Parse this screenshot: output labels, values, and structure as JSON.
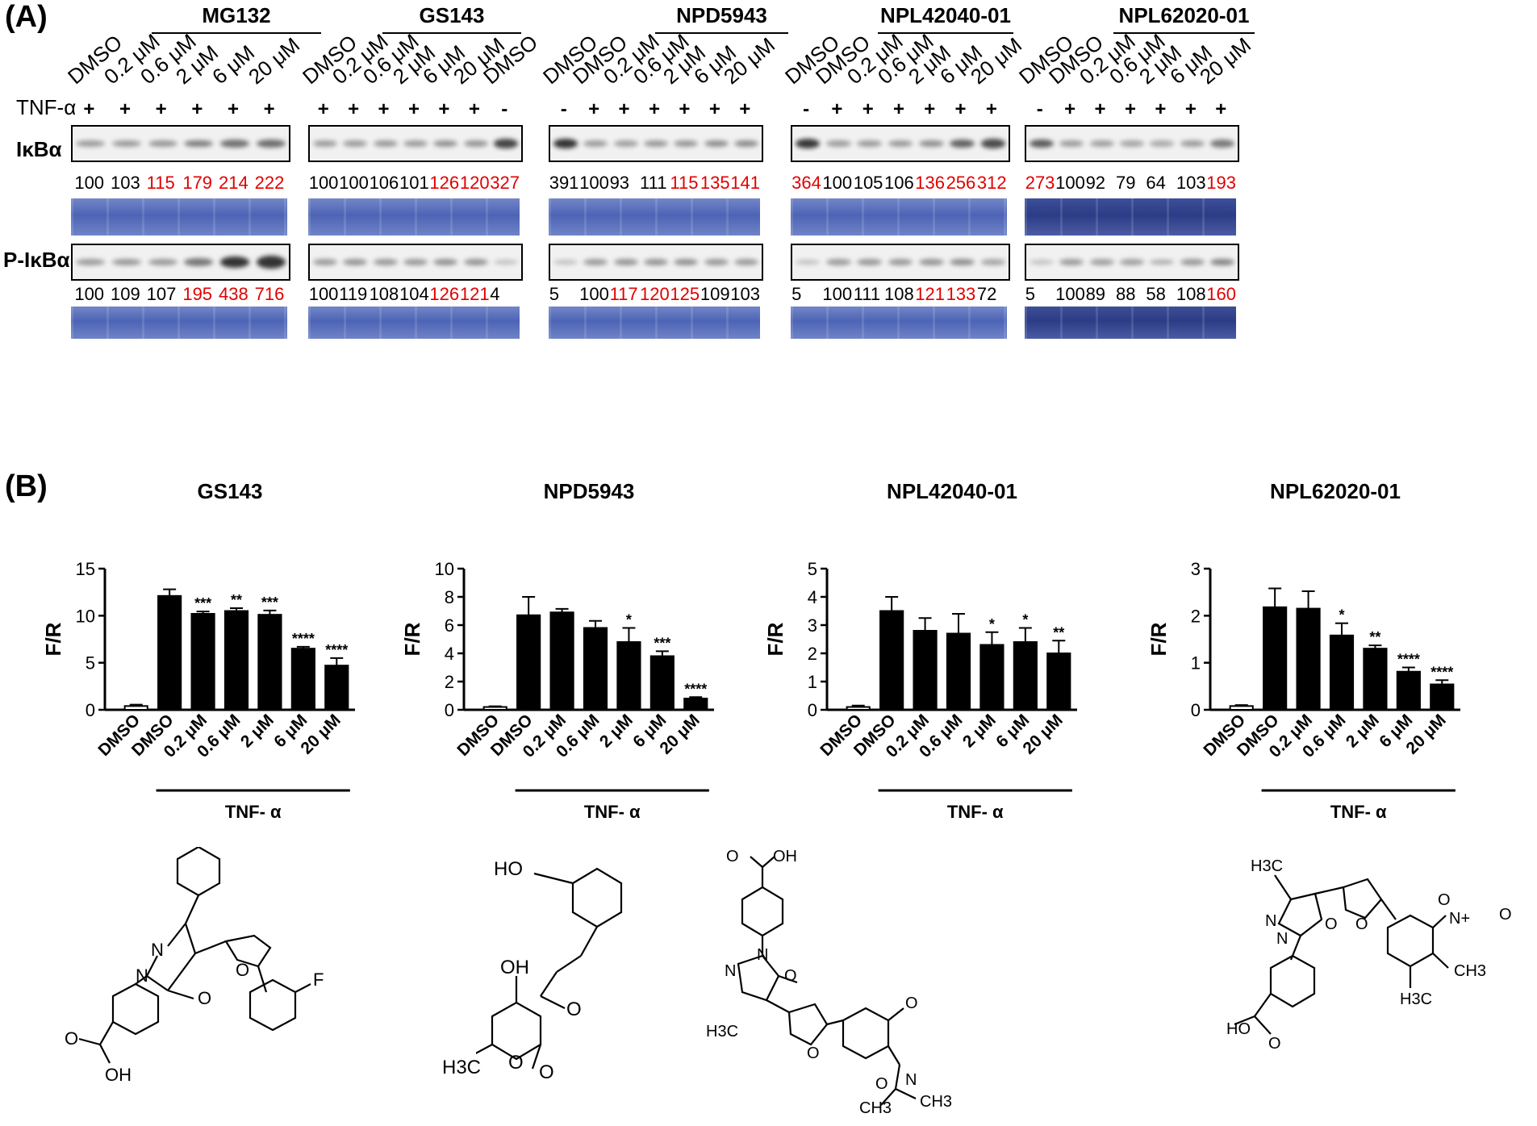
{
  "panel_a": {
    "label": "(A)",
    "tnf_label": "TNF-α",
    "row_labels": [
      "IκBα",
      "P-IκBα"
    ],
    "blots": [
      {
        "compound": "MG132",
        "lanes": [
          "DMSO",
          "0.2 μM",
          "0.6 μM",
          "2 μM",
          "6 μM",
          "20 μM"
        ],
        "tnf": [
          "+",
          "+",
          "+",
          "+",
          "+",
          "+"
        ],
        "ikba": [
          {
            "v": "100",
            "red": false
          },
          {
            "v": "103",
            "red": false
          },
          {
            "v": "115",
            "red": true
          },
          {
            "v": "179",
            "red": true
          },
          {
            "v": "214",
            "red": true
          },
          {
            "v": "222",
            "red": true
          }
        ],
        "pikba": [
          {
            "v": "100",
            "red": false
          },
          {
            "v": "109",
            "red": false
          },
          {
            "v": "107",
            "red": false
          },
          {
            "v": "195",
            "red": true
          },
          {
            "v": "438",
            "red": true
          },
          {
            "v": "716",
            "red": true
          }
        ]
      },
      {
        "compound": "GS143",
        "lanes": [
          "DMSO",
          "0.2 μM",
          "0.6 μM",
          "2 μM",
          "6 μM",
          "20 μM",
          "DMSO"
        ],
        "tnf": [
          "+",
          "+",
          "+",
          "+",
          "+",
          "+",
          "-"
        ],
        "ikba": [
          {
            "v": "100",
            "red": false
          },
          {
            "v": "100",
            "red": false
          },
          {
            "v": "106",
            "red": false
          },
          {
            "v": "101",
            "red": false
          },
          {
            "v": "126",
            "red": true
          },
          {
            "v": "120",
            "red": true
          },
          {
            "v": "327",
            "red": true
          }
        ],
        "pikba": [
          {
            "v": "100",
            "red": false
          },
          {
            "v": "119",
            "red": false
          },
          {
            "v": "108",
            "red": false
          },
          {
            "v": "104",
            "red": false
          },
          {
            "v": "126",
            "red": true
          },
          {
            "v": "121",
            "red": true
          },
          {
            "v": "4",
            "red": false
          }
        ]
      },
      {
        "compound": "NPD5943",
        "lanes": [
          "DMSO",
          "DMSO",
          "0.2 μM",
          "0.6 μM",
          "2 μM",
          "6 μM",
          "20 μM"
        ],
        "tnf": [
          "-",
          "+",
          "+",
          "+",
          "+",
          "+",
          "+"
        ],
        "ikba": [
          {
            "v": "391",
            "red": false
          },
          {
            "v": "100",
            "red": false
          },
          {
            "v": "93",
            "red": false
          },
          {
            "v": "111",
            "red": false
          },
          {
            "v": "115",
            "red": true
          },
          {
            "v": "135",
            "red": true
          },
          {
            "v": "141",
            "red": true
          }
        ],
        "pikba": [
          {
            "v": "5",
            "red": false
          },
          {
            "v": "100",
            "red": false
          },
          {
            "v": "117",
            "red": true
          },
          {
            "v": "120",
            "red": true
          },
          {
            "v": "125",
            "red": true
          },
          {
            "v": "109",
            "red": false
          },
          {
            "v": "103",
            "red": false
          }
        ]
      },
      {
        "compound": "NPL42040-01",
        "lanes": [
          "DMSO",
          "DMSO",
          "0.2 μM",
          "0.6 μM",
          "2 μM",
          "6 μM",
          "20 μM"
        ],
        "tnf": [
          "-",
          "+",
          "+",
          "+",
          "+",
          "+",
          "+"
        ],
        "ikba": [
          {
            "v": "364",
            "red": true
          },
          {
            "v": "100",
            "red": false
          },
          {
            "v": "105",
            "red": false
          },
          {
            "v": "106",
            "red": false
          },
          {
            "v": "136",
            "red": true
          },
          {
            "v": "256",
            "red": true
          },
          {
            "v": "312",
            "red": true
          }
        ],
        "pikba": [
          {
            "v": "5",
            "red": false
          },
          {
            "v": "100",
            "red": false
          },
          {
            "v": "111",
            "red": false
          },
          {
            "v": "108",
            "red": false
          },
          {
            "v": "121",
            "red": true
          },
          {
            "v": "133",
            "red": true
          },
          {
            "v": "72",
            "red": false
          }
        ]
      },
      {
        "compound": "NPL62020-01",
        "lanes": [
          "DMSO",
          "DMSO",
          "0.2 μM",
          "0.6 μM",
          "2 μM",
          "6 μM",
          "20 μM"
        ],
        "tnf": [
          "-",
          "+",
          "+",
          "+",
          "+",
          "+",
          "+"
        ],
        "ikba": [
          {
            "v": "273",
            "red": true
          },
          {
            "v": "100",
            "red": false
          },
          {
            "v": "92",
            "red": false
          },
          {
            "v": "79",
            "red": false
          },
          {
            "v": "64",
            "red": false
          },
          {
            "v": "103",
            "red": false
          },
          {
            "v": "193",
            "red": true
          }
        ],
        "pikba": [
          {
            "v": "5",
            "red": false
          },
          {
            "v": "100",
            "red": false
          },
          {
            "v": "89",
            "red": false
          },
          {
            "v": "88",
            "red": false
          },
          {
            "v": "58",
            "red": false
          },
          {
            "v": "108",
            "red": false
          },
          {
            "v": "160",
            "red": true
          }
        ]
      }
    ]
  },
  "panel_b": {
    "label": "(B)"
  },
  "chart_data": [
    {
      "type": "bar",
      "title": "GS143",
      "ylabel": "F/R",
      "xgroup_label": "TNF- α",
      "categories": [
        "DMSO",
        "DMSO",
        "0.2 μM",
        "0.6 μM",
        "2 μM",
        "6 μM",
        "20 μM"
      ],
      "values": [
        0.4,
        12.1,
        10.2,
        10.5,
        10.1,
        6.5,
        4.7
      ],
      "errors": [
        0.15,
        0.7,
        0.25,
        0.3,
        0.45,
        0.2,
        0.8
      ],
      "significance": [
        "",
        "",
        "***",
        "**",
        "***",
        "****",
        "****"
      ],
      "ylim": [
        0,
        15
      ],
      "yticks": [
        0,
        5,
        10,
        15
      ]
    },
    {
      "type": "bar",
      "title": "NPD5943",
      "ylabel": "F/R",
      "xgroup_label": "TNF- α",
      "categories": [
        "DMSO",
        "DMSO",
        "0.2 μM",
        "0.6 μM",
        "2 μM",
        "6 μM",
        "20 μM"
      ],
      "values": [
        0.2,
        6.7,
        6.9,
        5.8,
        4.8,
        3.8,
        0.8
      ],
      "errors": [
        0.05,
        1.3,
        0.25,
        0.5,
        1.0,
        0.35,
        0.1
      ],
      "significance": [
        "",
        "",
        "",
        "",
        "*",
        "***",
        "****"
      ],
      "ylim": [
        0,
        10
      ],
      "yticks": [
        0,
        2,
        4,
        6,
        8,
        10
      ]
    },
    {
      "type": "bar",
      "title": "NPL42040-01",
      "ylabel": "F/R",
      "xgroup_label": "TNF- α",
      "categories": [
        "DMSO",
        "DMSO",
        "0.2 μM",
        "0.6 μM",
        "2 μM",
        "6 μM",
        "20 μM"
      ],
      "values": [
        0.1,
        3.5,
        2.8,
        2.7,
        2.3,
        2.4,
        2.0
      ],
      "errors": [
        0.05,
        0.5,
        0.45,
        0.7,
        0.45,
        0.5,
        0.45
      ],
      "significance": [
        "",
        "",
        "",
        "",
        "*",
        "*",
        "**"
      ],
      "ylim": [
        0,
        5
      ],
      "yticks": [
        0,
        1,
        2,
        3,
        4,
        5
      ]
    },
    {
      "type": "bar",
      "title": "NPL62020-01",
      "ylabel": "F/R",
      "xgroup_label": "TNF- α",
      "categories": [
        "DMSO",
        "DMSO",
        "0.2 μM",
        "0.6 μM",
        "2 μM",
        "6 μM",
        "20 μM"
      ],
      "values": [
        0.08,
        2.18,
        2.15,
        1.58,
        1.3,
        0.81,
        0.54
      ],
      "errors": [
        0.02,
        0.4,
        0.37,
        0.26,
        0.07,
        0.09,
        0.09
      ],
      "significance": [
        "",
        "",
        "",
        "*",
        "**",
        "****",
        "****"
      ],
      "ylim": [
        0,
        3
      ],
      "yticks": [
        0,
        1,
        2,
        3
      ]
    }
  ],
  "structures": [
    {
      "name": "gs143-structure",
      "labels": [
        "N",
        "N",
        "O",
        "O",
        "F",
        "O",
        "OH"
      ]
    },
    {
      "name": "npd5943-structure",
      "labels": [
        "HO",
        "OH",
        "O",
        "O",
        "O",
        "H3C"
      ]
    },
    {
      "name": "npl42040-structure",
      "labels": [
        "O",
        "OH",
        "N",
        "N",
        "O",
        "H3C",
        "O",
        "O",
        "O",
        "N",
        "CH3",
        "CH3"
      ]
    },
    {
      "name": "npl62020-structure",
      "labels": [
        "H3C",
        "N",
        "N",
        "O",
        "O",
        "O",
        "N+",
        "O",
        "HO",
        "O",
        "H3C",
        "CH3"
      ]
    }
  ]
}
